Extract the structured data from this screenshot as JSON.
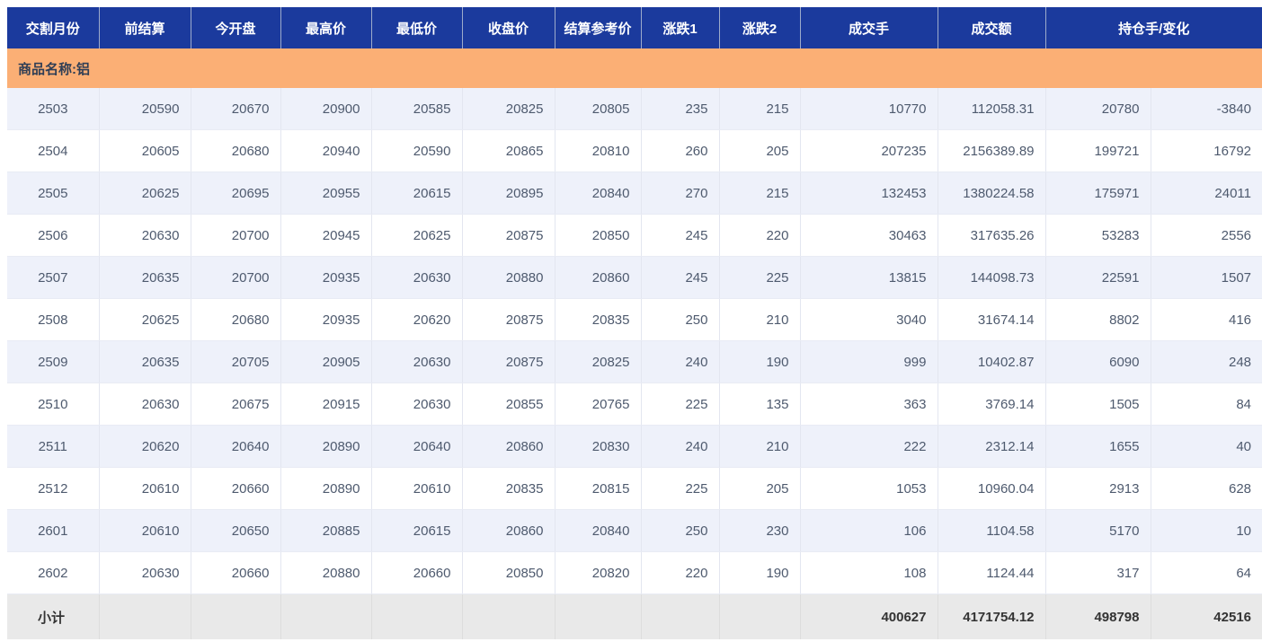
{
  "header": {
    "columns": [
      {
        "label": "交割月份",
        "colspan": 1
      },
      {
        "label": "前结算",
        "colspan": 1
      },
      {
        "label": "今开盘",
        "colspan": 1
      },
      {
        "label": "最高价",
        "colspan": 1
      },
      {
        "label": "最低价",
        "colspan": 1
      },
      {
        "label": "收盘价",
        "colspan": 1
      },
      {
        "label": "结算参考价",
        "colspan": 1
      },
      {
        "label": "涨跌1",
        "colspan": 1
      },
      {
        "label": "涨跌2",
        "colspan": 1
      },
      {
        "label": "成交手",
        "colspan": 1
      },
      {
        "label": "成交额",
        "colspan": 1
      },
      {
        "label": "持仓手/变化",
        "colspan": 2
      }
    ]
  },
  "group_label": "商品名称:铝",
  "rows": [
    [
      "2503",
      "20590",
      "20670",
      "20900",
      "20585",
      "20825",
      "20805",
      "235",
      "215",
      "10770",
      "112058.31",
      "20780",
      "-3840"
    ],
    [
      "2504",
      "20605",
      "20680",
      "20940",
      "20590",
      "20865",
      "20810",
      "260",
      "205",
      "207235",
      "2156389.89",
      "199721",
      "16792"
    ],
    [
      "2505",
      "20625",
      "20695",
      "20955",
      "20615",
      "20895",
      "20840",
      "270",
      "215",
      "132453",
      "1380224.58",
      "175971",
      "24011"
    ],
    [
      "2506",
      "20630",
      "20700",
      "20945",
      "20625",
      "20875",
      "20850",
      "245",
      "220",
      "30463",
      "317635.26",
      "53283",
      "2556"
    ],
    [
      "2507",
      "20635",
      "20700",
      "20935",
      "20630",
      "20880",
      "20860",
      "245",
      "225",
      "13815",
      "144098.73",
      "22591",
      "1507"
    ],
    [
      "2508",
      "20625",
      "20680",
      "20935",
      "20620",
      "20875",
      "20835",
      "250",
      "210",
      "3040",
      "31674.14",
      "8802",
      "416"
    ],
    [
      "2509",
      "20635",
      "20705",
      "20905",
      "20630",
      "20875",
      "20825",
      "240",
      "190",
      "999",
      "10402.87",
      "6090",
      "248"
    ],
    [
      "2510",
      "20630",
      "20675",
      "20915",
      "20630",
      "20855",
      "20765",
      "225",
      "135",
      "363",
      "3769.14",
      "1505",
      "84"
    ],
    [
      "2511",
      "20620",
      "20640",
      "20890",
      "20640",
      "20860",
      "20830",
      "240",
      "210",
      "222",
      "2312.14",
      "1655",
      "40"
    ],
    [
      "2512",
      "20610",
      "20660",
      "20890",
      "20610",
      "20835",
      "20815",
      "225",
      "205",
      "1053",
      "10960.04",
      "2913",
      "628"
    ],
    [
      "2601",
      "20610",
      "20650",
      "20885",
      "20615",
      "20860",
      "20840",
      "250",
      "230",
      "106",
      "1104.58",
      "5170",
      "10"
    ],
    [
      "2602",
      "20630",
      "20660",
      "20880",
      "20660",
      "20850",
      "20820",
      "220",
      "190",
      "108",
      "1124.44",
      "317",
      "64"
    ]
  ],
  "subtotal": [
    "小计",
    "",
    "",
    "",
    "",
    "",
    "",
    "",
    "",
    "400627",
    "4171754.12",
    "498798",
    "42516"
  ],
  "colors": {
    "header_bg": "#1B3A9D",
    "header_text": "#FFFFFF",
    "group_bg": "#FBAF75",
    "row_alt_bg": "#EEF1FA",
    "subtotal_bg": "#E9E9E9",
    "data_text": "#4E5A6E"
  }
}
